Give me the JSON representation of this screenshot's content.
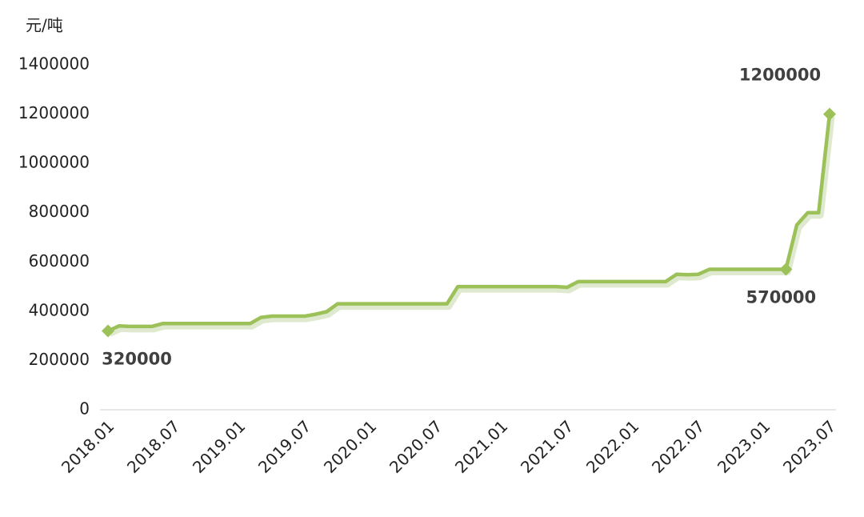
{
  "chart_data": {
    "type": "line",
    "y_label": "元/吨",
    "categories": [
      "2018.01",
      null,
      null,
      null,
      null,
      null,
      "2018.07",
      null,
      null,
      null,
      null,
      null,
      "2019.01",
      null,
      null,
      null,
      null,
      null,
      "2019.07",
      null,
      null,
      null,
      null,
      null,
      "2020.01",
      null,
      null,
      null,
      null,
      null,
      "2020.07",
      null,
      null,
      null,
      null,
      null,
      "2021.01",
      null,
      null,
      null,
      null,
      null,
      "2021.07",
      null,
      null,
      null,
      null,
      null,
      "2022.01",
      null,
      null,
      null,
      null,
      null,
      "2022.07",
      null,
      null,
      null,
      null,
      null,
      "2023.01",
      null,
      null,
      null,
      null,
      null,
      "2023.07"
    ],
    "values": [
      320000,
      340000,
      338000,
      338000,
      338000,
      350000,
      350000,
      350000,
      350000,
      350000,
      350000,
      350000,
      350000,
      350000,
      375000,
      380000,
      380000,
      380000,
      380000,
      388000,
      398000,
      430000,
      430000,
      430000,
      430000,
      430000,
      430000,
      430000,
      430000,
      430000,
      430000,
      430000,
      500000,
      500000,
      500000,
      500000,
      500000,
      500000,
      500000,
      500000,
      500000,
      500000,
      497000,
      520000,
      520000,
      520000,
      520000,
      520000,
      520000,
      520000,
      520000,
      520000,
      550000,
      548000,
      550000,
      570000,
      570000,
      570000,
      570000,
      570000,
      570000,
      570000,
      570000,
      750000,
      800000,
      800000,
      1200000
    ],
    "labeled_points": [
      0,
      62,
      66
    ],
    "color": "#9bc158",
    "ylim": [
      0,
      1400000
    ],
    "yticks": [
      0,
      200000,
      400000,
      600000,
      800000,
      1000000,
      1200000,
      1400000
    ]
  }
}
